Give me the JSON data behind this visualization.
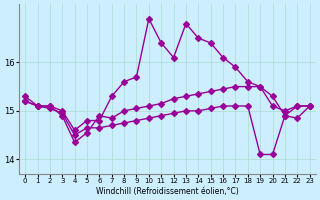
{
  "xlabel": "Windchill (Refroidissement éolien,°C)",
  "ylabel": "",
  "bg_color": "#cceeff",
  "line_color": "#990099",
  "grid_color": "#aaddcc",
  "x": [
    0,
    1,
    2,
    3,
    4,
    5,
    6,
    7,
    8,
    9,
    10,
    11,
    12,
    13,
    14,
    15,
    16,
    17,
    18,
    19,
    20,
    21,
    22,
    23
  ],
  "series": [
    [
      15.3,
      15.1,
      15.1,
      15.0,
      14.6,
      14.8,
      14.8,
      15.3,
      15.6,
      15.7,
      16.9,
      16.4,
      16.1,
      16.8,
      16.5,
      16.4,
      16.1,
      15.9,
      15.6,
      15.5,
      15.3,
      14.9,
      15.1,
      15.1
    ],
    [
      15.2,
      15.1,
      15.1,
      14.9,
      14.35,
      14.55,
      14.9,
      14.85,
      15.0,
      15.05,
      15.1,
      15.15,
      15.25,
      15.3,
      15.35,
      15.4,
      15.45,
      15.5,
      15.5,
      15.5,
      15.1,
      15.0,
      15.1,
      15.1
    ],
    [
      15.2,
      15.1,
      15.05,
      14.95,
      14.5,
      14.65,
      14.65,
      14.7,
      14.75,
      14.8,
      14.85,
      14.9,
      14.95,
      15.0,
      15.0,
      15.05,
      15.1,
      15.1,
      15.1,
      14.1,
      14.1,
      14.9,
      14.85,
      15.1
    ]
  ],
  "ylim": [
    13.7,
    17.2
  ],
  "yticks": [
    14,
    15,
    16
  ],
  "marker": "D",
  "markersize": 3,
  "linewidth": 1.0
}
